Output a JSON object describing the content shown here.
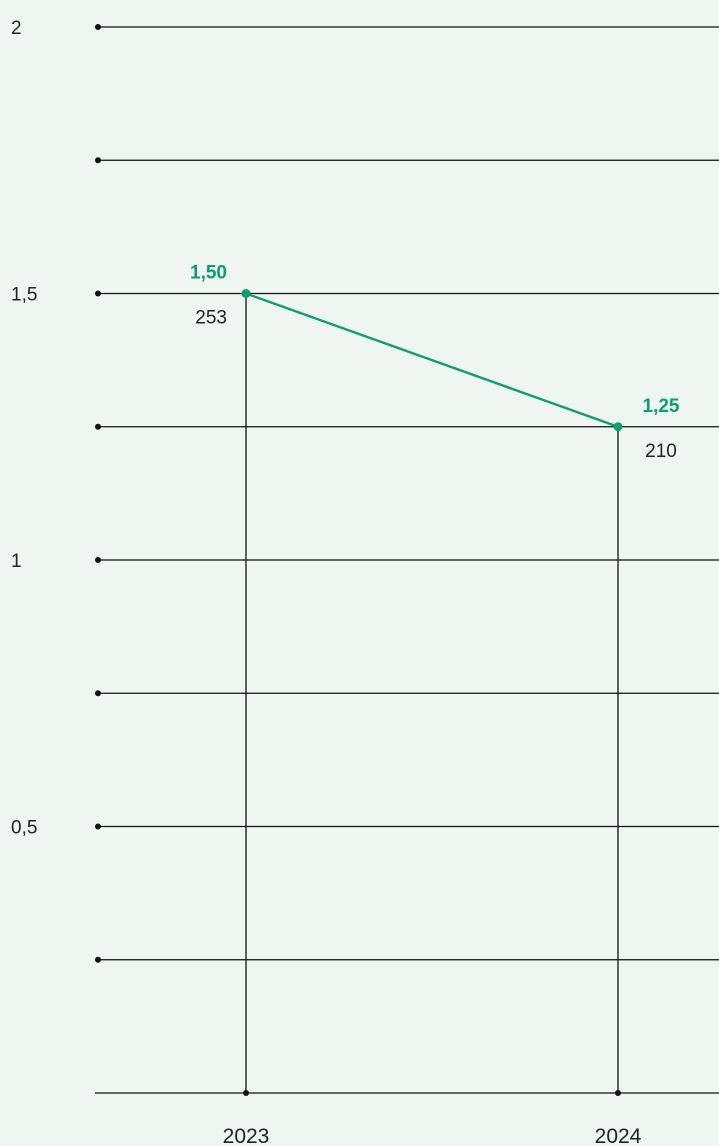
{
  "chart_data": {
    "type": "line",
    "title": "",
    "xlabel": "",
    "ylabel": "",
    "categories": [
      "2023",
      "2024"
    ],
    "ylim": [
      0,
      2
    ],
    "y_ticks": [
      {
        "value": 2,
        "label": "2"
      },
      {
        "value": 1.5,
        "label": "1,5"
      },
      {
        "value": 1,
        "label": "1"
      },
      {
        "value": 0.5,
        "label": "0,5"
      }
    ],
    "minor_y_ticks": [
      1.75,
      1.25,
      0.75,
      0.25
    ],
    "grid": true,
    "series": [
      {
        "values": [
          1.5,
          1.25
        ],
        "value_labels": [
          "1,50",
          "1,25"
        ],
        "secondary_labels": [
          "253",
          "210"
        ],
        "color": "#0e9e6e"
      }
    ]
  },
  "colors": {
    "background": "#eff5f1",
    "line": "#0e9e6e",
    "grid": "#111111"
  }
}
